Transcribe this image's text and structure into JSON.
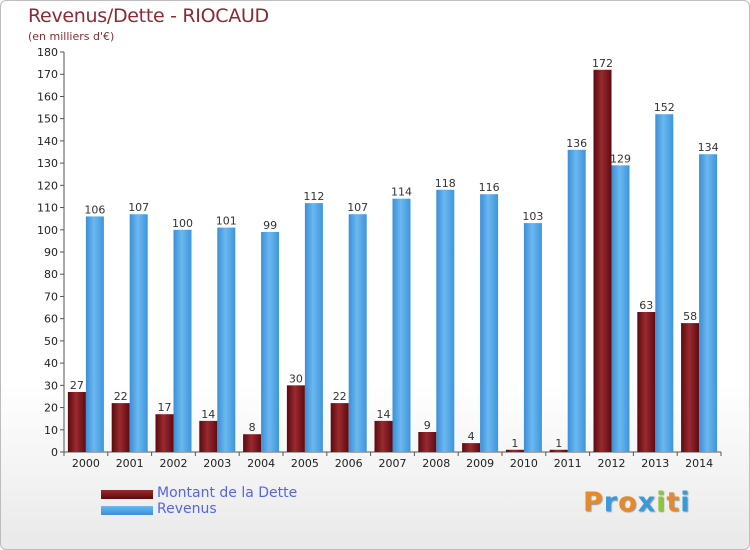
{
  "header": {
    "title": "Revenus/Dette - RIOCAUD",
    "subtitle": "(en milliers d'€)"
  },
  "legend": {
    "items": [
      {
        "label": "Montant de la Dette",
        "color": "#7a0f14"
      },
      {
        "label": "Revenus",
        "color": "#4aa3e8"
      }
    ]
  },
  "logo": {
    "letters": [
      {
        "ch": "P",
        "color": "#e58a2b"
      },
      {
        "ch": "r",
        "color": "#3a9ad9"
      },
      {
        "ch": "o",
        "color": "#e58a2b"
      },
      {
        "ch": "x",
        "color": "#3a9ad9"
      },
      {
        "ch": "i",
        "color": "#8cc63f"
      },
      {
        "ch": "t",
        "color": "#e58a2b"
      },
      {
        "ch": "i",
        "color": "#3a9ad9"
      }
    ]
  },
  "chart_data": {
    "type": "bar",
    "title": "Revenus/Dette - RIOCAUD",
    "subtitle": "(en milliers d'€)",
    "categories": [
      "2000",
      "2001",
      "2002",
      "2003",
      "2004",
      "2005",
      "2006",
      "2007",
      "2008",
      "2009",
      "2010",
      "2011",
      "2012",
      "2013",
      "2014"
    ],
    "series": [
      {
        "name": "Montant de la Dette",
        "color": "#7a0f14",
        "values": [
          27,
          22,
          17,
          14,
          8,
          30,
          22,
          14,
          9,
          4,
          1,
          1,
          172,
          63,
          58
        ]
      },
      {
        "name": "Revenus",
        "color": "#4aa3e8",
        "values": [
          106,
          107,
          100,
          101,
          99,
          112,
          107,
          114,
          118,
          116,
          103,
          136,
          129,
          152,
          134
        ]
      }
    ],
    "ylim": [
      0,
      180
    ],
    "ytick_step": 10,
    "grid": false,
    "legend_position": "bottom-left"
  }
}
